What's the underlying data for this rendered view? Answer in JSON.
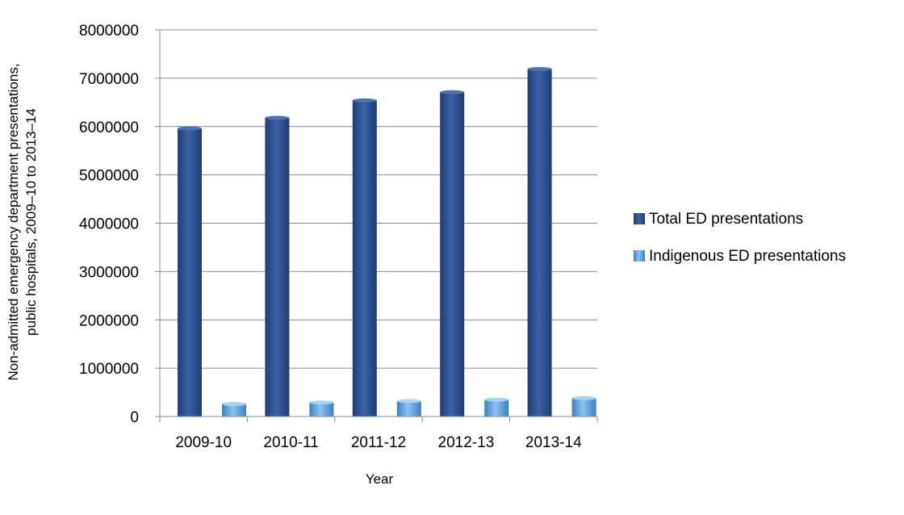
{
  "chart_data": {
    "type": "bar",
    "title": "",
    "xlabel": "Year",
    "ylabel": "Non-admitted emergency department presentations, public hospitals, 2009–10 to 2013–14",
    "ylabel_lines": [
      "Non-admitted emergency department presentations,",
      "public hospitals, 2009–10 to 2013–14"
    ],
    "categories": [
      "2009-10",
      "2010-11",
      "2011-12",
      "2012-13",
      "2013-14"
    ],
    "series": [
      {
        "name": "Total ED presentations",
        "values": [
          5960000,
          6180000,
          6540000,
          6710000,
          7190000
        ],
        "color": "#2F5597"
      },
      {
        "name": "Indigenous ED presentations",
        "values": [
          260000,
          290000,
          320000,
          350000,
          380000
        ],
        "color": "#5B9BD5"
      }
    ],
    "ylim": [
      0,
      8000000
    ],
    "yticks": [
      "0",
      "1000000",
      "2000000",
      "3000000",
      "4000000",
      "5000000",
      "6000000",
      "7000000",
      "8000000"
    ],
    "grid": true,
    "legend": "right"
  }
}
